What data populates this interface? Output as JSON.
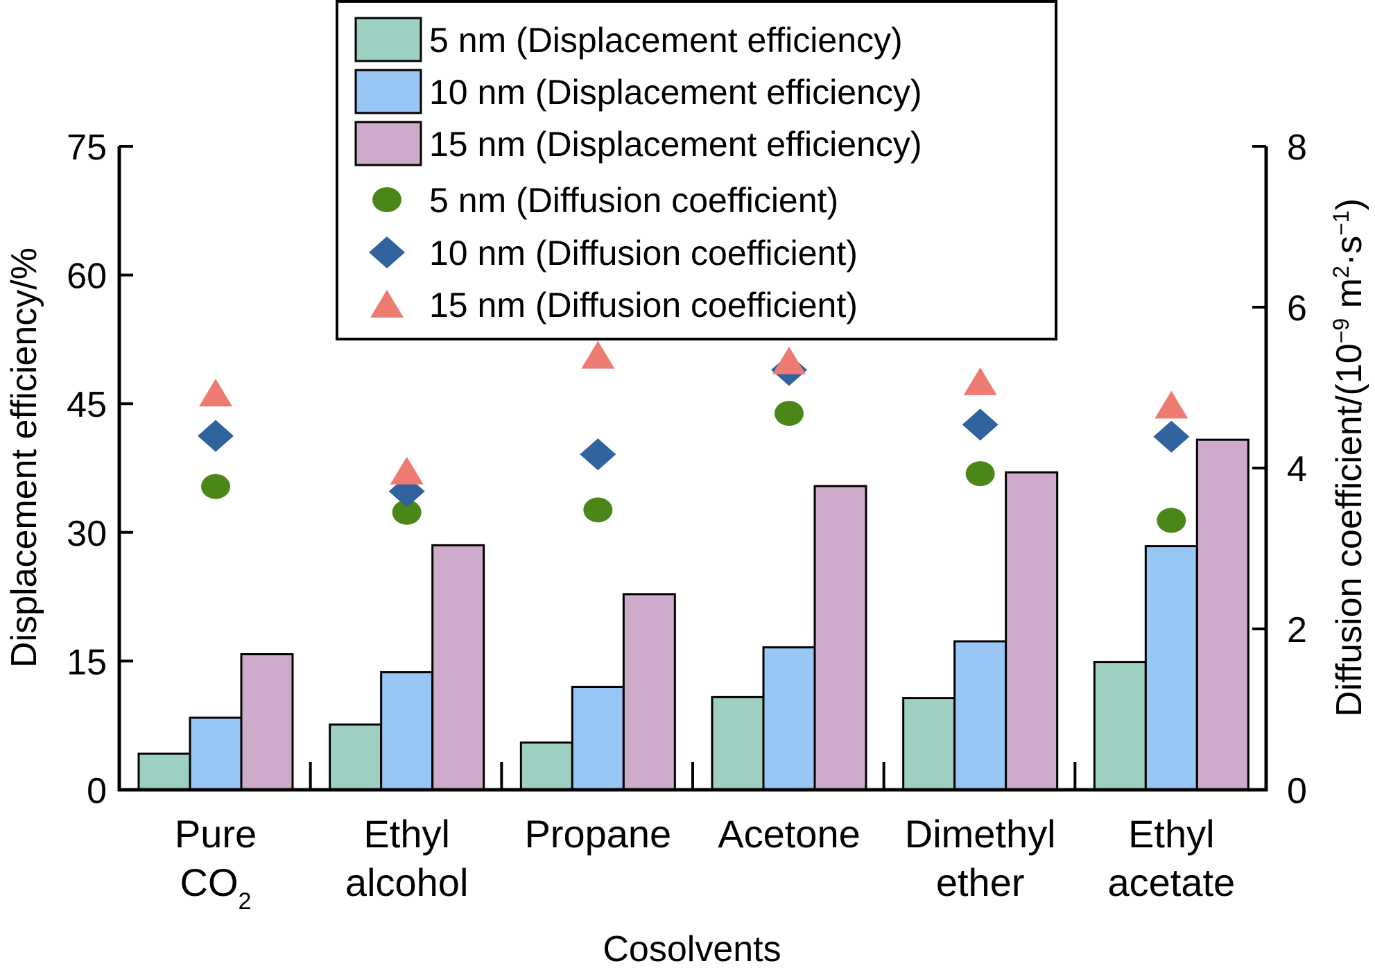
{
  "chart_data": {
    "type": "bar",
    "title": "",
    "xlabel": "Cosolvents",
    "ylabel": "Displacement efficiency/%",
    "y2label": {
      "prefix": "Diffusion coefficient/(10",
      "exp1": "−9",
      "mid": " m",
      "exp2": "2",
      "mid2": "·s",
      "exp3": "−1",
      "suffix": ")"
    },
    "categories": [
      {
        "line1": "Pure",
        "line2": "CO",
        "line2_sub": "2"
      },
      {
        "line1": "Ethyl",
        "line2": "alcohol",
        "line2_sub": ""
      },
      {
        "line1": "Propane",
        "line2": "",
        "line2_sub": ""
      },
      {
        "line1": "Acetone",
        "line2": "",
        "line2_sub": ""
      },
      {
        "line1": "Dimethyl",
        "line2": "ether",
        "line2_sub": ""
      },
      {
        "line1": "Ethyl",
        "line2": "acetate",
        "line2_sub": ""
      }
    ],
    "ylim": [
      0,
      75
    ],
    "yticks": [
      0,
      15,
      30,
      45,
      60,
      75
    ],
    "y2lim": [
      0,
      8
    ],
    "y2ticks": [
      0,
      2,
      4,
      6,
      8
    ],
    "grid": false,
    "legend_position": "top-center",
    "bar_series": [
      {
        "name": "5 nm (Displacement efficiency)",
        "color": "#9dd0c3",
        "axis": "left",
        "values": [
          4.2,
          7.6,
          5.5,
          10.8,
          10.7,
          14.9
        ]
      },
      {
        "name": "10 nm (Displacement efficiency)",
        "color": "#98c6f5",
        "axis": "left",
        "values": [
          8.4,
          13.7,
          12.0,
          16.6,
          17.3,
          28.4
        ]
      },
      {
        "name": "15 nm (Displacement efficiency)",
        "color": "#cfabcb",
        "axis": "left",
        "values": [
          15.8,
          28.5,
          22.8,
          35.4,
          37.0,
          40.8
        ]
      }
    ],
    "scatter_series": [
      {
        "name": "5 nm (Diffusion coefficient)",
        "color": "#4b8718",
        "marker": "circle",
        "axis": "right",
        "values": [
          3.77,
          3.45,
          3.48,
          4.68,
          3.93,
          3.35
        ]
      },
      {
        "name": "10 nm (Diffusion coefficient)",
        "color": "#30629e",
        "marker": "diamond",
        "axis": "right",
        "values": [
          4.4,
          3.71,
          4.17,
          5.22,
          4.54,
          4.39
        ]
      },
      {
        "name": "15 nm (Diffusion coefficient)",
        "color": "#ee7b72",
        "marker": "triangle",
        "axis": "right",
        "values": [
          4.93,
          3.96,
          5.4,
          5.33,
          5.07,
          4.78
        ]
      }
    ]
  }
}
